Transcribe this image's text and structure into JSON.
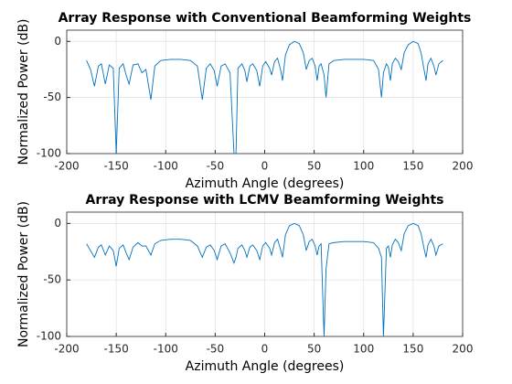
{
  "chart_data": [
    {
      "type": "line",
      "title": "Array Response with Conventional Beamforming Weights",
      "xlabel": "Azimuth Angle (degrees)",
      "ylabel": "Normalized Power (dB)",
      "xlim": [
        -200,
        200
      ],
      "xticks": [
        -200,
        -150,
        -100,
        -50,
        0,
        50,
        100,
        150,
        200
      ],
      "ylim": [
        -100,
        10
      ],
      "yticks": [
        -100,
        -50,
        0
      ],
      "grid": true,
      "color": "#0072bd",
      "x": [
        -180,
        -176,
        -172,
        -168,
        -165,
        -161,
        -157,
        -153,
        -150,
        -147,
        -143,
        -140,
        -137,
        -133,
        -128,
        -124,
        -120,
        -115,
        -111,
        -105,
        -95,
        -85,
        -75,
        -68,
        -63,
        -59,
        -55,
        -51,
        -48,
        -44,
        -40,
        -35,
        -31,
        -29,
        -27,
        -23,
        -20,
        -18,
        -15,
        -12,
        -8,
        -5,
        -2,
        1,
        5,
        7,
        10,
        13,
        16,
        18,
        21,
        25,
        30,
        35,
        39,
        42,
        45,
        48,
        51,
        53,
        55,
        57,
        60,
        62,
        65,
        70,
        80,
        90,
        100,
        110,
        115,
        118,
        120,
        123,
        125,
        127,
        129,
        132,
        135,
        138,
        141,
        145,
        150,
        155,
        158,
        161,
        163,
        165,
        168,
        171,
        173,
        176,
        180
      ],
      "values": [
        -17,
        -25,
        -40,
        -22,
        -20,
        -38,
        -21,
        -24,
        -100,
        -24,
        -20,
        -30,
        -38,
        -21,
        -20,
        -28,
        -25,
        -52,
        -22,
        -17,
        -16,
        -16,
        -17,
        -22,
        -52,
        -24,
        -20,
        -26,
        -40,
        -22,
        -20,
        -28,
        -100,
        -100,
        -24,
        -20,
        -26,
        -36,
        -22,
        -20,
        -26,
        -40,
        -22,
        -18,
        -24,
        -30,
        -18,
        -15,
        -25,
        -35,
        -12,
        -3,
        0,
        -2,
        -10,
        -25,
        -17,
        -15,
        -22,
        -35,
        -22,
        -20,
        -30,
        -50,
        -20,
        -17,
        -16,
        -16,
        -16,
        -17,
        -25,
        -50,
        -28,
        -20,
        -23,
        -35,
        -20,
        -15,
        -18,
        -25,
        -10,
        -3,
        0,
        -2,
        -10,
        -25,
        -35,
        -20,
        -15,
        -22,
        -30,
        -20,
        -17
      ]
    },
    {
      "type": "line",
      "title": "Array Response with LCMV Beamforming Weights",
      "xlabel": "Azimuth Angle (degrees)",
      "ylabel": "Normalized Power (dB)",
      "xlim": [
        -200,
        200
      ],
      "xticks": [
        -200,
        -150,
        -100,
        -50,
        0,
        50,
        100,
        150,
        200
      ],
      "ylim": [
        -100,
        10
      ],
      "yticks": [
        -100,
        -50,
        0
      ],
      "grid": true,
      "color": "#0072bd",
      "x": [
        -180,
        -176,
        -172,
        -168,
        -165,
        -161,
        -157,
        -153,
        -150,
        -147,
        -143,
        -140,
        -137,
        -133,
        -128,
        -124,
        -120,
        -115,
        -111,
        -105,
        -95,
        -85,
        -75,
        -68,
        -63,
        -59,
        -55,
        -51,
        -48,
        -44,
        -40,
        -35,
        -31,
        -29,
        -27,
        -23,
        -20,
        -18,
        -15,
        -12,
        -8,
        -5,
        -2,
        1,
        5,
        7,
        10,
        13,
        16,
        18,
        21,
        25,
        30,
        35,
        39,
        42,
        45,
        48,
        51,
        53,
        55,
        57,
        60,
        62,
        65,
        70,
        80,
        90,
        100,
        110,
        115,
        118,
        120,
        123,
        125,
        127,
        129,
        132,
        135,
        138,
        141,
        145,
        150,
        155,
        158,
        161,
        163,
        165,
        168,
        171,
        173,
        176,
        180
      ],
      "values": [
        -18,
        -24,
        -30,
        -21,
        -19,
        -28,
        -20,
        -24,
        -38,
        -22,
        -19,
        -26,
        -32,
        -21,
        -17,
        -20,
        -20,
        -28,
        -18,
        -15,
        -14,
        -14,
        -15,
        -20,
        -30,
        -21,
        -19,
        -24,
        -32,
        -20,
        -18,
        -26,
        -35,
        -30,
        -22,
        -19,
        -24,
        -30,
        -21,
        -19,
        -24,
        -32,
        -20,
        -17,
        -22,
        -28,
        -17,
        -14,
        -23,
        -30,
        -10,
        -2,
        0,
        -2,
        -10,
        -24,
        -16,
        -14,
        -20,
        -28,
        -20,
        -18,
        -100,
        -40,
        -18,
        -17,
        -16,
        -16,
        -16,
        -17,
        -22,
        -30,
        -100,
        -22,
        -20,
        -30,
        -19,
        -14,
        -17,
        -24,
        -9,
        -2,
        0,
        -2,
        -9,
        -22,
        -30,
        -19,
        -14,
        -20,
        -28,
        -20,
        -18
      ]
    }
  ]
}
